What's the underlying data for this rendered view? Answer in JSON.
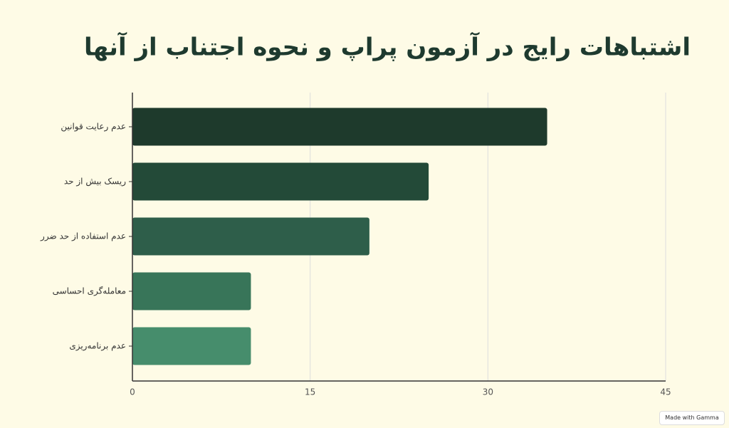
{
  "chart_data": {
    "type": "bar",
    "orientation": "horizontal",
    "title": "اشتباهات رایج در آزمون پراپ و نحوه اجتناب از آنها",
    "categories": [
      "عدم رعایت قوانین",
      "ریسک بیش از حد",
      "عدم استفاده از حد ضرر",
      "معامله‌گری احساسی",
      "عدم برنامه‌ریزی"
    ],
    "values": [
      35,
      25,
      20,
      10,
      10
    ],
    "colors": [
      "#1e3a2c",
      "#234a38",
      "#2e5e4a",
      "#387559",
      "#468d6c"
    ],
    "xlim": [
      0,
      45
    ],
    "xticks": [
      0,
      15,
      30,
      45
    ],
    "grid": true
  },
  "badge": "Made with Gamma"
}
